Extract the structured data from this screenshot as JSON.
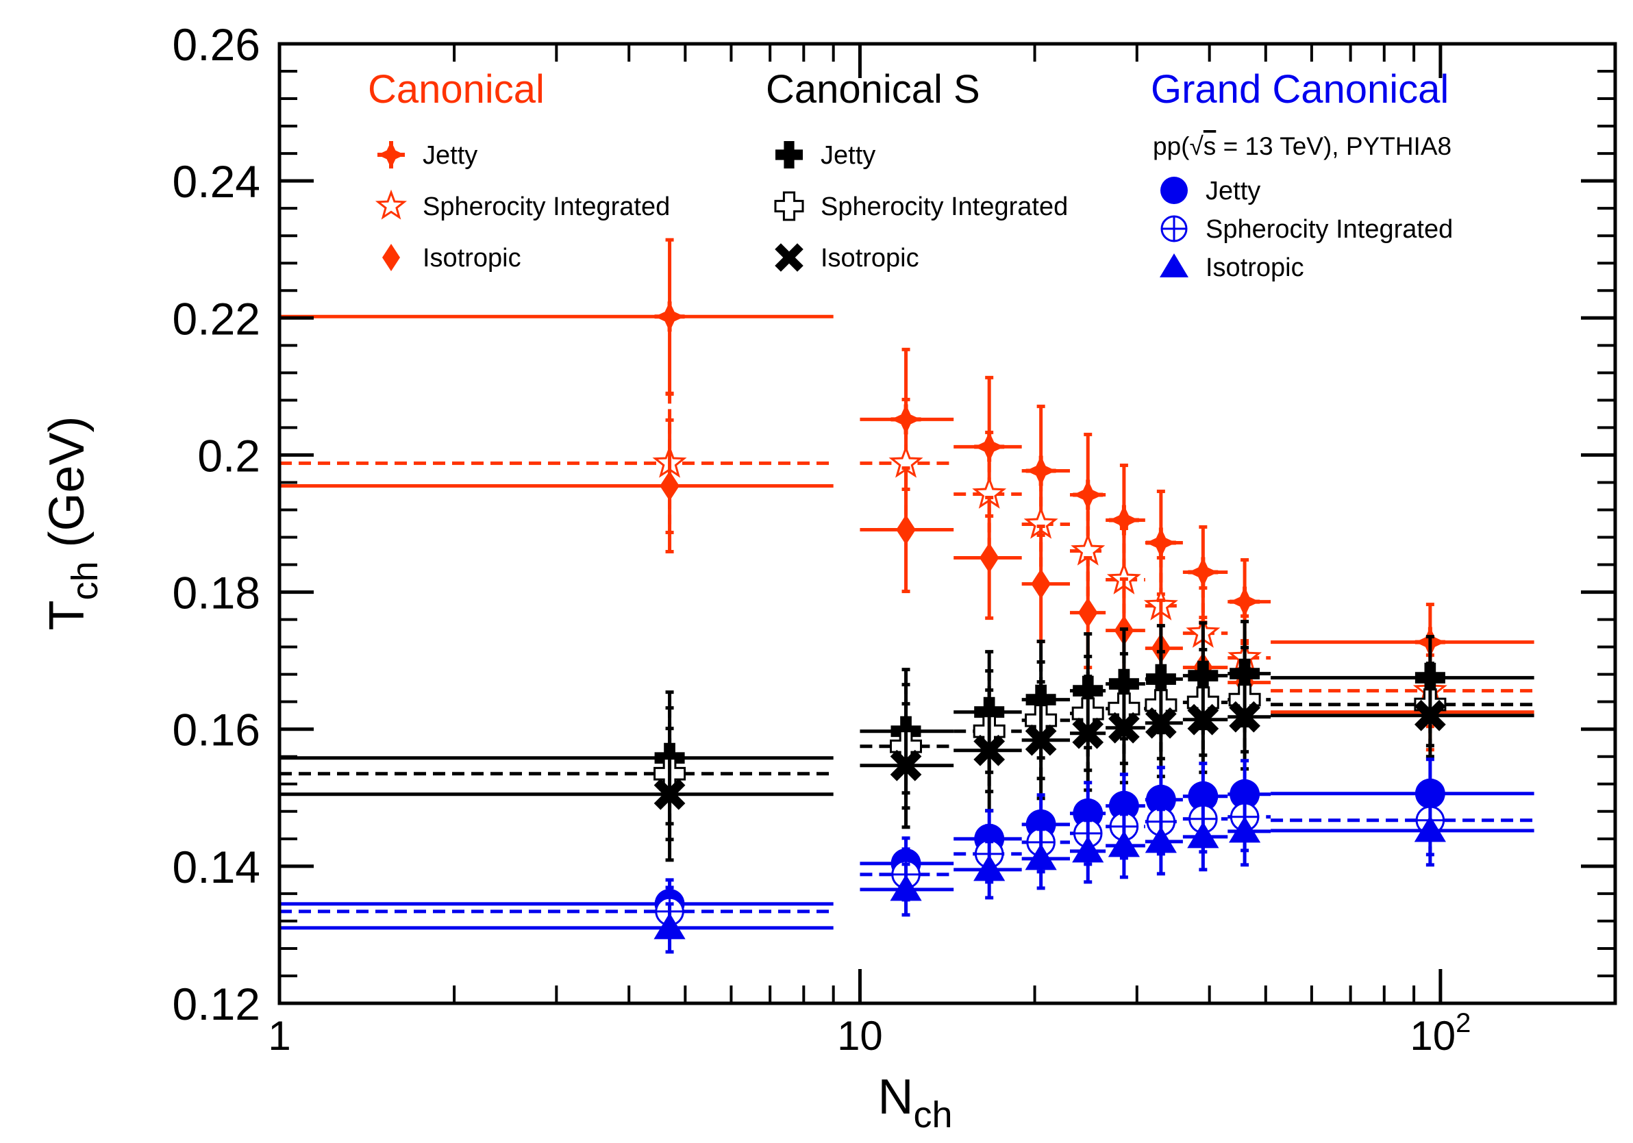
{
  "chart_data": {
    "type": "scatter",
    "xscale": "log",
    "xlim": [
      1,
      200
    ],
    "ylim": [
      0.12,
      0.26
    ],
    "xlabel": "N",
    "xlabel_sub": "ch",
    "ylabel": "T",
    "ylabel_sub": "ch",
    "ylabel_unit": "(GeV)",
    "yticks": [
      {
        "v": 0.12,
        "label": "0.12"
      },
      {
        "v": 0.14,
        "label": "0.14"
      },
      {
        "v": 0.16,
        "label": "0.16"
      },
      {
        "v": 0.18,
        "label": "0.18"
      },
      {
        "v": 0.2,
        "label": "0.2"
      },
      {
        "v": 0.22,
        "label": "0.22"
      },
      {
        "v": 0.24,
        "label": "0.24"
      },
      {
        "v": 0.26,
        "label": "0.26"
      }
    ],
    "xticks": [
      {
        "v": 1,
        "label": "1"
      },
      {
        "v": 10,
        "label": "10"
      },
      {
        "v": 100,
        "label": "10",
        "sup": "2"
      }
    ],
    "bins": [
      {
        "x": 4.7,
        "lo": 1,
        "hi": 9
      },
      {
        "x": 12,
        "lo": 10,
        "hi": 14.5
      },
      {
        "x": 16.7,
        "lo": 14.5,
        "hi": 19
      },
      {
        "x": 20.5,
        "lo": 19,
        "hi": 23
      },
      {
        "x": 24.7,
        "lo": 23,
        "hi": 26.5
      },
      {
        "x": 28.5,
        "lo": 26.5,
        "hi": 31
      },
      {
        "x": 33,
        "lo": 31,
        "hi": 36
      },
      {
        "x": 39,
        "lo": 36,
        "hi": 43
      },
      {
        "x": 46,
        "lo": 43,
        "hi": 51
      },
      {
        "x": 96,
        "lo": 51,
        "hi": 145
      }
    ],
    "groups": [
      {
        "title": "Canonical",
        "color": "#ff3300"
      },
      {
        "title": "Canonical S",
        "color": "#000000"
      },
      {
        "title": "Grand Canonical",
        "color": "#0000ee",
        "subtitle_pre": "pp(",
        "subtitle_root": "s",
        "subtitle_post": " = 13 TeV), PYTHIA8"
      }
    ],
    "series": [
      {
        "name": "Jetty",
        "group": 0,
        "marker": "star4",
        "color": "#ff3300",
        "fill": true,
        "y": [
          0.2202,
          0.2052,
          0.2012,
          0.1977,
          0.1942,
          0.1905,
          0.1872,
          0.1829,
          0.1786,
          0.1727
        ],
        "err": [
          0.0112,
          0.0102,
          0.0101,
          0.0094,
          0.0088,
          0.008,
          0.0075,
          0.0066,
          0.0061,
          0.0055
        ]
      },
      {
        "name": "Spherocity Integrated",
        "group": 0,
        "marker": "star5",
        "color": "#ff3300",
        "fill": false,
        "y": [
          0.1988,
          0.1988,
          0.1943,
          0.1899,
          0.186,
          0.1818,
          0.178,
          0.174,
          0.1704,
          0.1656
        ],
        "err": [
          0.0101,
          0.0093,
          0.009,
          0.0084,
          0.008,
          0.0075,
          0.007,
          0.0066,
          0.0061,
          0.0052
        ]
      },
      {
        "name": "Isotropic",
        "group": 0,
        "marker": "diamond",
        "color": "#ff3300",
        "fill": true,
        "y": [
          0.1955,
          0.1891,
          0.185,
          0.1812,
          0.177,
          0.1744,
          0.1718,
          0.169,
          0.1668,
          0.1625
        ],
        "err": [
          0.0096,
          0.009,
          0.0088,
          0.0084,
          0.008,
          0.0075,
          0.007,
          0.0066,
          0.0061,
          0.0055
        ]
      },
      {
        "name": "Jetty",
        "group": 1,
        "marker": "cross",
        "color": "#000000",
        "fill": true,
        "y": [
          0.1558,
          0.1597,
          0.1625,
          0.1643,
          0.1656,
          0.1666,
          0.1673,
          0.1678,
          0.1681,
          0.1675
        ],
        "err": [
          0.0096,
          0.009,
          0.0088,
          0.0085,
          0.0083,
          0.008,
          0.0078,
          0.0077,
          0.0076,
          0.006
        ]
      },
      {
        "name": "Spherocity Integrated",
        "group": 1,
        "marker": "cross",
        "color": "#000000",
        "fill": false,
        "y": [
          0.1535,
          0.1575,
          0.1597,
          0.1613,
          0.1623,
          0.163,
          0.1635,
          0.1639,
          0.1643,
          0.1636
        ],
        "err": [
          0.0096,
          0.009,
          0.0088,
          0.0085,
          0.0083,
          0.008,
          0.0078,
          0.0077,
          0.0076,
          0.006
        ]
      },
      {
        "name": "Isotropic",
        "group": 1,
        "marker": "x",
        "color": "#000000",
        "fill": true,
        "y": [
          0.1505,
          0.1547,
          0.1569,
          0.1584,
          0.1594,
          0.1602,
          0.1609,
          0.1614,
          0.1618,
          0.162
        ],
        "err": [
          0.0096,
          0.009,
          0.0088,
          0.0085,
          0.0083,
          0.008,
          0.0078,
          0.0077,
          0.0076,
          0.006
        ]
      },
      {
        "name": "Jetty",
        "group": 2,
        "marker": "circle",
        "color": "#0000ee",
        "fill": true,
        "y": [
          0.1345,
          0.1404,
          0.144,
          0.1461,
          0.1477,
          0.1488,
          0.1497,
          0.1502,
          0.1505,
          0.1506
        ],
        "err": [
          0.0035,
          0.0037,
          0.0041,
          0.0043,
          0.0045,
          0.0046,
          0.0047,
          0.0048,
          0.0049,
          0.005
        ]
      },
      {
        "name": "Spherocity Integrated",
        "group": 2,
        "marker": "circlecross",
        "color": "#0000ee",
        "fill": false,
        "y": [
          0.1334,
          0.1388,
          0.1418,
          0.1435,
          0.1448,
          0.1458,
          0.1465,
          0.1469,
          0.1472,
          0.1467
        ],
        "err": [
          0.0035,
          0.0037,
          0.0041,
          0.0043,
          0.0045,
          0.0046,
          0.0047,
          0.0048,
          0.0049,
          0.005
        ]
      },
      {
        "name": "Isotropic",
        "group": 2,
        "marker": "triangle",
        "color": "#0000ee",
        "fill": true,
        "y": [
          0.131,
          0.1366,
          0.1395,
          0.1411,
          0.1422,
          0.143,
          0.1436,
          0.1443,
          0.1451,
          0.1452
        ],
        "err": [
          0.0035,
          0.0037,
          0.0041,
          0.0043,
          0.0045,
          0.0046,
          0.0047,
          0.0048,
          0.0049,
          0.005
        ]
      }
    ]
  }
}
